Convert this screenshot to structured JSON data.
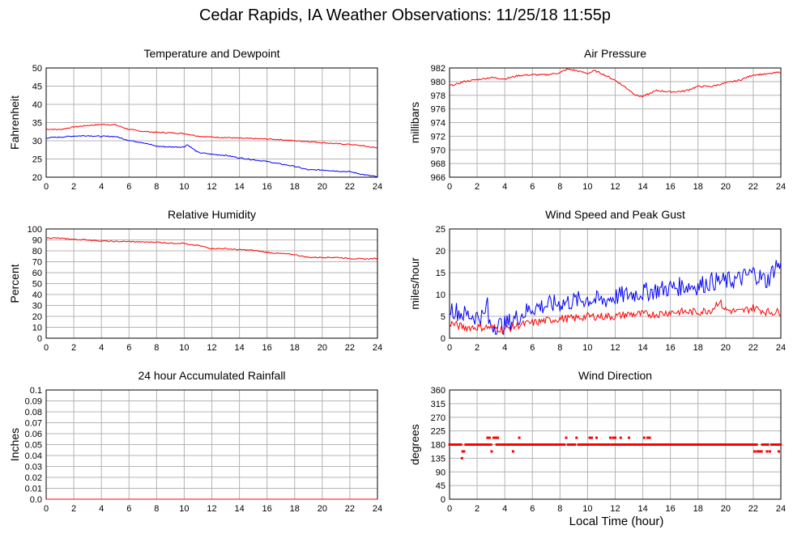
{
  "title": "Cedar Rapids, IA Weather Observations: 11/25/18 11:55p",
  "xlabel": "Local Time (hour)",
  "colors": {
    "red": "#ff0000",
    "blue": "#0000ff",
    "grid": "#b4b4b4"
  },
  "chart_data": [
    {
      "type": "line",
      "title": "Temperature and Dewpoint",
      "ylabel": "Fahrenheit",
      "xlim": [
        0,
        24
      ],
      "ylim": [
        20,
        50
      ],
      "yticks": [
        20,
        25,
        30,
        35,
        40,
        45,
        50
      ],
      "xticks": [
        0,
        2,
        4,
        6,
        8,
        10,
        12,
        14,
        16,
        18,
        20,
        22,
        24
      ],
      "series": [
        {
          "color": "#ff0000",
          "step": 0.0833,
          "x": [
            0,
            1,
            2,
            3,
            4,
            5,
            6,
            7,
            8,
            9,
            10,
            11,
            12,
            13,
            14,
            15,
            16,
            17,
            18,
            19,
            20,
            21,
            22,
            23,
            24
          ],
          "values": [
            33.2,
            33.1,
            33.8,
            34.2,
            34.5,
            34.4,
            33.1,
            32.6,
            32.3,
            32.2,
            32.0,
            31.3,
            31.0,
            30.9,
            30.7,
            30.6,
            30.5,
            30.3,
            30.0,
            29.8,
            29.5,
            29.2,
            29.0,
            28.6,
            28.0
          ],
          "noise": 0.15
        },
        {
          "color": "#0000ff",
          "step": 0.0833,
          "x": [
            0,
            1,
            2,
            3,
            4,
            5,
            6,
            7,
            8,
            9,
            10,
            10.2,
            11,
            12,
            13,
            14,
            15,
            16,
            17,
            18,
            19,
            20,
            21,
            22,
            23,
            24
          ],
          "values": [
            30.8,
            31.0,
            31.3,
            31.4,
            31.2,
            31.2,
            30.1,
            29.5,
            28.5,
            28.3,
            28.3,
            29.0,
            26.8,
            26.3,
            26.0,
            25.3,
            24.8,
            24.3,
            23.6,
            23.0,
            22.0,
            22.0,
            21.7,
            21.5,
            20.7,
            20.1
          ],
          "noise": 0.15
        }
      ]
    },
    {
      "type": "line",
      "title": "Air Pressure",
      "ylabel": "millibars",
      "xlim": [
        0,
        24
      ],
      "ylim": [
        966,
        982
      ],
      "yticks": [
        966,
        968,
        970,
        972,
        974,
        976,
        978,
        980,
        982
      ],
      "xticks": [
        0,
        2,
        4,
        6,
        8,
        10,
        12,
        14,
        16,
        18,
        20,
        22,
        24
      ],
      "series": [
        {
          "color": "#ff0000",
          "step": 0.0833,
          "x": [
            0,
            0.5,
            1,
            2,
            3,
            4,
            5,
            6,
            7,
            8,
            8.5,
            9,
            10,
            10.5,
            11,
            12,
            13,
            13.5,
            14,
            15,
            16,
            17,
            18,
            19,
            20,
            21,
            22,
            23,
            24
          ],
          "values": [
            979.4,
            979.6,
            980.0,
            980.3,
            980.6,
            980.4,
            980.9,
            981.0,
            981.0,
            981.3,
            981.8,
            981.7,
            981.2,
            981.6,
            981.2,
            980.2,
            978.8,
            978.0,
            977.8,
            978.7,
            978.5,
            978.6,
            979.3,
            979.3,
            979.8,
            980.2,
            981.0,
            981.1,
            981.4
          ],
          "noise": 0.12
        }
      ]
    },
    {
      "type": "line",
      "title": "Relative Humidity",
      "ylabel": "Percent",
      "xlim": [
        0,
        24
      ],
      "ylim": [
        0,
        100
      ],
      "yticks": [
        0,
        10,
        20,
        30,
        40,
        50,
        60,
        70,
        80,
        90,
        100
      ],
      "xticks": [
        0,
        2,
        4,
        6,
        8,
        10,
        12,
        14,
        16,
        18,
        20,
        22,
        24
      ],
      "series": [
        {
          "color": "#ff0000",
          "step": 0.0833,
          "x": [
            0,
            1,
            2,
            3,
            4,
            5,
            6,
            7,
            8,
            9,
            10,
            10.3,
            11,
            12,
            13,
            14,
            15,
            16,
            17,
            18,
            19,
            20,
            21,
            22,
            23,
            24
          ],
          "values": [
            92,
            91.5,
            90.5,
            90,
            89,
            88.5,
            88.5,
            88,
            88,
            87,
            87,
            85.5,
            85,
            82,
            82,
            81,
            80.5,
            78.5,
            77.5,
            76.5,
            74,
            74,
            74,
            73,
            72.5,
            73
          ],
          "noise": 0.5
        }
      ]
    },
    {
      "type": "line",
      "title": "Wind Speed and Peak Gust",
      "ylabel": "miles/hour",
      "xlim": [
        0,
        24
      ],
      "ylim": [
        0,
        25
      ],
      "yticks": [
        0,
        5,
        10,
        15,
        20,
        25
      ],
      "xticks": [
        0,
        2,
        4,
        6,
        8,
        10,
        12,
        14,
        16,
        18,
        20,
        22,
        24
      ],
      "series": [
        {
          "color": "#0000ff",
          "step": 0.0833,
          "x": [
            0,
            1,
            2,
            2.6,
            2.7,
            2.8,
            3,
            4,
            5,
            6,
            7,
            8,
            9,
            10,
            11,
            12,
            13,
            14,
            15,
            16,
            17,
            18,
            19,
            20,
            21,
            22,
            23,
            23.7,
            24
          ],
          "values": [
            7,
            5.5,
            5,
            5,
            10.5,
            4,
            3,
            3,
            5,
            7,
            7.5,
            8,
            8.5,
            9,
            8.5,
            9.5,
            10,
            10.5,
            11,
            11.5,
            12,
            12,
            13,
            13,
            13.5,
            15,
            13,
            17,
            16
          ],
          "noise": 2.2
        },
        {
          "color": "#ff0000",
          "step": 0.0833,
          "x": [
            0,
            1,
            2,
            3,
            4,
            5,
            6,
            7,
            8,
            9,
            10,
            11,
            12,
            13,
            14,
            15,
            16,
            17,
            18,
            19,
            19.5,
            20,
            21,
            22,
            23,
            24
          ],
          "values": [
            3.5,
            2.5,
            2.5,
            2.5,
            2,
            3,
            3.5,
            4,
            4.5,
            4.5,
            5,
            5,
            5,
            5.5,
            5.5,
            5.5,
            6,
            6,
            6,
            6.5,
            8.5,
            6.5,
            6,
            7,
            6,
            6
          ],
          "noise": 0.9
        }
      ]
    },
    {
      "type": "line",
      "title": "24 hour Accumulated Rainfall",
      "ylabel": "Inches",
      "xlim": [
        0,
        24
      ],
      "ylim": [
        0,
        0.1
      ],
      "yticks": [
        0.0,
        0.01,
        0.02,
        0.03,
        0.04,
        0.05,
        0.06,
        0.07,
        0.08,
        0.09,
        0.1
      ],
      "ytick_labels": [
        "0.0",
        "0.01",
        "0.02",
        "0.03",
        "0.04",
        "0.05",
        "0.06",
        "0.07",
        "0.08",
        "0.09",
        "0.1"
      ],
      "xticks": [
        0,
        2,
        4,
        6,
        8,
        10,
        12,
        14,
        16,
        18,
        20,
        22,
        24
      ],
      "series": [
        {
          "color": "#ff0000",
          "step": 1,
          "x": [
            0,
            24
          ],
          "values": [
            0,
            0
          ],
          "noise": 0
        }
      ]
    },
    {
      "type": "scatter",
      "title": "Wind Direction",
      "ylabel": "degrees",
      "xlim": [
        0,
        24
      ],
      "ylim": [
        0,
        360
      ],
      "yticks": [
        0,
        45,
        90,
        135,
        180,
        225,
        270,
        315,
        360
      ],
      "xticks": [
        0,
        2,
        4,
        6,
        8,
        10,
        12,
        14,
        16,
        18,
        20,
        22,
        24
      ],
      "base_value": 180,
      "step": 0.0833,
      "excursions": [
        {
          "x": 0.9,
          "y": 135
        },
        {
          "x": 0.95,
          "y": 157.5
        },
        {
          "x": 1.05,
          "y": 157.5
        },
        {
          "x": 2.75,
          "y": 202.5
        },
        {
          "x": 2.9,
          "y": 202.5
        },
        {
          "x": 3.05,
          "y": 157.5
        },
        {
          "x": 3.2,
          "y": 202.5
        },
        {
          "x": 3.35,
          "y": 202.5
        },
        {
          "x": 3.5,
          "y": 202.5
        },
        {
          "x": 4.6,
          "y": 157.5
        },
        {
          "x": 5.05,
          "y": 202.5
        },
        {
          "x": 8.45,
          "y": 202.5
        },
        {
          "x": 9.2,
          "y": 202.5
        },
        {
          "x": 10.15,
          "y": 202.5
        },
        {
          "x": 10.3,
          "y": 202.5
        },
        {
          "x": 10.65,
          "y": 202.5
        },
        {
          "x": 11.65,
          "y": 202.5
        },
        {
          "x": 11.85,
          "y": 202.5
        },
        {
          "x": 12.0,
          "y": 202.5
        },
        {
          "x": 12.4,
          "y": 202.5
        },
        {
          "x": 13.0,
          "y": 202.5
        },
        {
          "x": 14.1,
          "y": 202.5
        },
        {
          "x": 14.35,
          "y": 202.5
        },
        {
          "x": 14.5,
          "y": 202.5
        },
        {
          "x": 22.1,
          "y": 157.5
        },
        {
          "x": 22.3,
          "y": 157.5
        },
        {
          "x": 22.45,
          "y": 157.5
        },
        {
          "x": 22.6,
          "y": 157.5
        },
        {
          "x": 23.0,
          "y": 157.5
        },
        {
          "x": 23.2,
          "y": 157.5
        },
        {
          "x": 23.85,
          "y": 157.5
        }
      ]
    }
  ]
}
